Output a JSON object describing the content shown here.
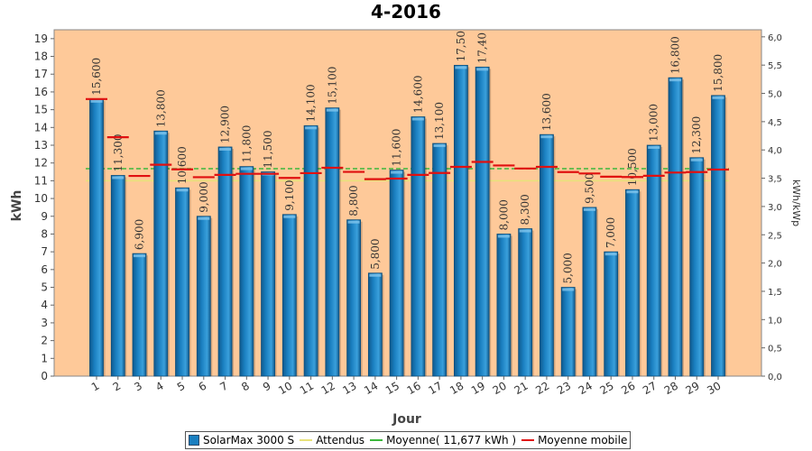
{
  "chart_data": {
    "type": "bar",
    "title": "4-2016",
    "xlabel": "Jour",
    "ylabel": "kWh",
    "ylabel_right": "kWh/kWp",
    "ylim": [
      0,
      19.5
    ],
    "ylim_right": [
      0.0,
      6.0
    ],
    "yticks": [
      "0",
      "1",
      "2",
      "3",
      "4",
      "5",
      "6",
      "7",
      "8",
      "9",
      "10",
      "11",
      "12",
      "13",
      "14",
      "15",
      "16",
      "17",
      "18",
      "19"
    ],
    "yticks_right": [
      "0,0",
      "0,5",
      "1,0",
      "1,5",
      "2,0",
      "2,5",
      "3,0",
      "3,5",
      "4,0",
      "4,5",
      "5,0",
      "5,5",
      "6,0"
    ],
    "categories": [
      "1",
      "2",
      "3",
      "4",
      "5",
      "6",
      "7",
      "8",
      "9",
      "10",
      "11",
      "12",
      "13",
      "14",
      "15",
      "16",
      "17",
      "18",
      "19",
      "20",
      "21",
      "22",
      "23",
      "24",
      "25",
      "26",
      "27",
      "28",
      "29",
      "30"
    ],
    "series": [
      {
        "name": "SolarMax 3000 S",
        "kind": "bar",
        "color": "#1a7fc0",
        "values": [
          15.6,
          11.3,
          6.9,
          13.8,
          10.6,
          9.0,
          12.9,
          11.8,
          11.5,
          9.1,
          14.1,
          15.1,
          8.8,
          5.8,
          11.6,
          14.6,
          13.1,
          17.5,
          17.4,
          8.0,
          8.3,
          13.6,
          5.0,
          9.5,
          7.0,
          10.5,
          13.0,
          16.8,
          12.3,
          15.8
        ],
        "labels": [
          "15,600",
          "11,300",
          "6,900",
          "13,800",
          "10,600",
          "9,000",
          "12,900",
          "11,800",
          "11,500",
          "9,100",
          "14,100",
          "15,100",
          "8,800",
          "5,800",
          "11,600",
          "14,600",
          "13,100",
          "17,50",
          "17,40",
          "8,000",
          "8,300",
          "13,600",
          "5,000",
          "9,500",
          "7,000",
          "10,500",
          "13,000",
          "16,800",
          "12,300",
          "15,800"
        ]
      },
      {
        "name": "Attendus",
        "kind": "line",
        "color": "#e8e27a",
        "values": [
          11.0,
          11.0,
          11.0,
          11.0,
          11.0,
          11.0,
          11.0,
          11.0,
          11.0,
          11.0,
          11.0,
          11.0,
          11.0,
          11.0,
          11.0,
          11.0,
          11.0,
          11.0,
          11.0,
          11.0,
          11.0,
          11.0,
          11.0,
          11.0,
          11.0,
          11.0,
          11.0,
          11.0,
          11.0,
          11.0
        ]
      },
      {
        "name": "Moyenne( 11,677 kWh )",
        "kind": "line",
        "color": "#3cb83c",
        "values": [
          11.677,
          11.677,
          11.677,
          11.677,
          11.677,
          11.677,
          11.677,
          11.677,
          11.677,
          11.677,
          11.677,
          11.677,
          11.677,
          11.677,
          11.677,
          11.677,
          11.677,
          11.677,
          11.677,
          11.677,
          11.677,
          11.677,
          11.677,
          11.677,
          11.677,
          11.677,
          11.677,
          11.677,
          11.677,
          11.677
        ]
      },
      {
        "name": "Moyenne mobile",
        "kind": "step",
        "color": "#e01010",
        "values": [
          15.6,
          13.45,
          11.27,
          11.9,
          11.64,
          11.2,
          11.33,
          11.39,
          11.39,
          11.16,
          11.43,
          11.73,
          11.5,
          11.09,
          11.12,
          11.33,
          11.44,
          11.78,
          12.06,
          11.86,
          11.69,
          11.78,
          11.49,
          11.41,
          11.23,
          11.21,
          11.28,
          11.46,
          11.49,
          11.63
        ]
      }
    ],
    "grid": false,
    "legend_position": "bottom"
  },
  "legend": {
    "items": [
      {
        "label": "SolarMax 3000 S",
        "kind": "box",
        "color": "#1a7fc0"
      },
      {
        "label": "Attendus",
        "kind": "line",
        "color": "#e8e27a"
      },
      {
        "label": "Moyenne( 11,677 kWh )",
        "kind": "line",
        "color": "#3cb83c"
      },
      {
        "label": "Moyenne mobile",
        "kind": "line",
        "color": "#e01010"
      }
    ]
  },
  "colors": {
    "plot_background": "#fec999",
    "bar_fill": "#1a7fc0",
    "bar_highlight": "#7fc4ec"
  }
}
